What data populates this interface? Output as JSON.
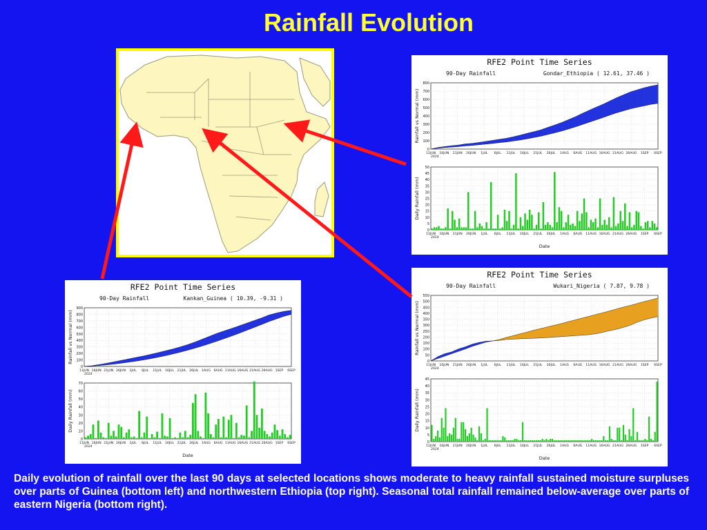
{
  "title": "Rainfall Evolution",
  "caption": "Daily evolution of rainfall over the last 90 days at selected locations shows moderate to heavy rainfall sustained moisture surpluses over parts of Guinea (bottom left) and northwestern Ethiopia (top right). Seasonal total rainfall remained below-average over parts of eastern Nigeria (bottom right).",
  "colors": {
    "background": "#1414f0",
    "title": "#ffff33",
    "surplus": "#2233dd",
    "deficit": "#e8a020",
    "daily_bar": "#22cc22",
    "arrow": "#ff1a1a",
    "map_land": "#fdf6bf"
  },
  "map": {
    "name": "africa-map"
  },
  "chart_data": [
    {
      "id": "gondar",
      "type": "area",
      "title": "RFE2 Point Time Series",
      "subtitle_left": "90-Day Rainfall",
      "subtitle_right": "Gondar_Ethiopia  ( 12.61, 37.46 )",
      "top_ylabel": "Rainfall vs Normal (mm)",
      "bottom_ylabel": "Daily Rainfall (mm)",
      "xlabel": "Date",
      "x_ticks": [
        "11JUN",
        "16JUN",
        "21JUN",
        "26JUN",
        "1JUL",
        "6JUL",
        "11JUL",
        "16JUL",
        "21JUL",
        "26JUL",
        "1AUG",
        "6AUG",
        "11AUG",
        "16AUG",
        "21AUG",
        "26AUG",
        "1SEP",
        "6SEP"
      ],
      "x_year": "2024",
      "top_ylim": [
        0,
        800
      ],
      "top_yticks": [
        "0",
        "100",
        "200",
        "300",
        "400",
        "500",
        "600",
        "700",
        "800"
      ],
      "bottom_ylim": [
        0,
        50
      ],
      "bottom_yticks": [
        "0",
        "5",
        "10",
        "15",
        "20",
        "25",
        "30",
        "35",
        "40",
        "45",
        "50"
      ],
      "series": [
        {
          "name": "actual",
          "values": [
            0,
            18,
            30,
            40,
            48,
            62,
            68,
            80,
            92,
            105,
            118,
            130,
            148,
            168,
            190,
            210,
            232,
            262,
            290,
            320,
            355,
            390,
            430,
            468,
            505,
            540,
            580,
            620,
            655,
            690,
            715,
            740,
            760,
            775
          ]
        },
        {
          "name": "normal",
          "values": [
            0,
            10,
            18,
            24,
            30,
            38,
            44,
            52,
            60,
            68,
            78,
            86,
            98,
            110,
            124,
            140,
            156,
            176,
            196,
            218,
            242,
            268,
            296,
            324,
            352,
            380,
            410,
            438,
            462,
            486,
            505,
            522,
            540,
            552
          ]
        }
      ],
      "daily": [
        1,
        2,
        2,
        3,
        1,
        1,
        2,
        17,
        1,
        15,
        8,
        2,
        9,
        2,
        2,
        2,
        30,
        1,
        1,
        15,
        2,
        5,
        3,
        1,
        6,
        1,
        38,
        1,
        1,
        12,
        1,
        2,
        16,
        7,
        15,
        1,
        4,
        45,
        1,
        10,
        3,
        13,
        8,
        16,
        12,
        1,
        4,
        14,
        1,
        22,
        4,
        6,
        4,
        2,
        46,
        6,
        18,
        15,
        2,
        6,
        12,
        4,
        5,
        3,
        15,
        7,
        13,
        25,
        14,
        2,
        8,
        6,
        9,
        2,
        25,
        4,
        8,
        4,
        10,
        2,
        26,
        3,
        5,
        15,
        7,
        21,
        3,
        14,
        2,
        4,
        15,
        14,
        3,
        1,
        6,
        7,
        2,
        7,
        5,
        2
      ]
    },
    {
      "id": "kankan",
      "type": "area",
      "title": "RFE2 Point Time Series",
      "subtitle_left": "90-Day Rainfall",
      "subtitle_right": "Kankan_Guinea  ( 10.39, -9.31 )",
      "top_ylabel": "Rainfall vs Normal (mm)",
      "bottom_ylabel": "Daily Rainfall (mm)",
      "xlabel": "Date",
      "x_ticks": [
        "11JUN",
        "16JUN",
        "21JUN",
        "26JUN",
        "1JUL",
        "6JUL",
        "11JUL",
        "16JUL",
        "21JUL",
        "26JUL",
        "1AUG",
        "6AUG",
        "11AUG",
        "16AUG",
        "21AUG",
        "26AUG",
        "1SEP",
        "6SEP"
      ],
      "x_year": "2024",
      "top_ylim": [
        0,
        900
      ],
      "top_yticks": [
        "0",
        "100",
        "200",
        "300",
        "400",
        "500",
        "600",
        "700",
        "800",
        "900"
      ],
      "bottom_ylim": [
        0,
        70
      ],
      "bottom_yticks": [
        "0",
        "10",
        "20",
        "30",
        "40",
        "50",
        "60",
        "70"
      ],
      "series": [
        {
          "name": "actual",
          "values": [
            0,
            10,
            28,
            48,
            70,
            92,
            115,
            138,
            160,
            185,
            212,
            240,
            268,
            300,
            335,
            375,
            420,
            465,
            510,
            548,
            585,
            625,
            665,
            705,
            745,
            790,
            820,
            845,
            860
          ]
        },
        {
          "name": "normal",
          "values": [
            0,
            6,
            14,
            24,
            36,
            50,
            66,
            82,
            100,
            120,
            142,
            166,
            192,
            220,
            250,
            282,
            316,
            352,
            390,
            430,
            470,
            512,
            556,
            600,
            644,
            690,
            730,
            770,
            800
          ]
        }
      ],
      "daily": [
        2,
        4,
        6,
        18,
        1,
        23,
        8,
        2,
        1,
        20,
        4,
        10,
        3,
        18,
        15,
        2,
        8,
        12,
        2,
        3,
        1,
        35,
        2,
        8,
        28,
        1,
        6,
        2,
        9,
        1,
        32,
        4,
        3,
        26,
        1,
        2,
        1,
        8,
        2,
        10,
        2,
        5,
        45,
        56,
        10,
        3,
        1,
        58,
        32,
        6,
        2,
        18,
        25,
        2,
        28,
        2,
        24,
        30,
        1,
        20,
        2,
        5,
        4,
        42,
        2,
        10,
        72,
        30,
        14,
        38,
        10,
        6,
        3,
        8,
        18,
        11,
        4,
        12,
        6,
        2,
        5
      ]
    },
    {
      "id": "wukari",
      "type": "area",
      "title": "RFE2 Point Time Series",
      "subtitle_left": "90-Day Rainfall",
      "subtitle_right": "Wukari_Nigeria  ( 7.87, 9.78 )",
      "top_ylabel": "Rainfall vs Normal (mm)",
      "bottom_ylabel": "Daily Rainfall (mm)",
      "xlabel": "Date",
      "x_ticks": [
        "11JUN",
        "16JUN",
        "21JUN",
        "26JUN",
        "1JUL",
        "6JUL",
        "11JUL",
        "16JUL",
        "21JUL",
        "26JUL",
        "1AUG",
        "6AUG",
        "11AUG",
        "16AUG",
        "21AUG",
        "26AUG",
        "1SEP",
        "6SEP"
      ],
      "x_year": "2024",
      "top_ylim": [
        0,
        550
      ],
      "top_yticks": [
        "0",
        "50",
        "100",
        "150",
        "200",
        "250",
        "300",
        "350",
        "400",
        "450",
        "500",
        "550"
      ],
      "bottom_ylim": [
        0,
        45
      ],
      "bottom_yticks": [
        "0",
        "5",
        "10",
        "15",
        "20",
        "25",
        "30",
        "35",
        "40",
        "45"
      ],
      "series": [
        {
          "name": "actual",
          "values": [
            0,
            35,
            60,
            75,
            100,
            118,
            140,
            155,
            165,
            168,
            172,
            180,
            183,
            186,
            188,
            190,
            193,
            196,
            200,
            204,
            208,
            212,
            216,
            220,
            228,
            240,
            254,
            266,
            282,
            300,
            325,
            345,
            360,
            372
          ]
        },
        {
          "name": "normal",
          "values": [
            0,
            20,
            40,
            60,
            80,
            100,
            122,
            140,
            158,
            168,
            180,
            198,
            212,
            228,
            242,
            258,
            272,
            286,
            300,
            314,
            330,
            344,
            360,
            374,
            390,
            404,
            420,
            436,
            452,
            466,
            482,
            498,
            512,
            528
          ]
        }
      ],
      "daily": [
        12,
        2,
        4,
        8,
        3,
        17,
        10,
        24,
        4,
        6,
        5,
        10,
        17,
        2,
        2,
        14,
        14,
        9,
        4,
        6,
        10,
        5,
        3,
        1,
        11,
        6,
        1,
        2,
        24,
        1,
        1,
        1,
        1,
        1,
        1,
        1,
        4,
        3,
        1,
        1,
        1,
        1,
        2,
        2,
        1,
        1,
        14,
        1,
        1,
        1,
        1,
        1,
        1,
        1,
        1,
        1,
        2,
        1,
        2,
        1,
        2,
        2,
        1,
        1,
        1,
        1,
        1,
        1,
        1,
        1,
        1,
        1,
        1,
        1,
        1,
        1,
        1,
        1,
        1,
        1,
        1,
        2,
        1,
        1,
        1,
        1,
        1,
        4,
        1,
        1,
        11,
        2,
        1,
        1,
        10,
        10,
        1,
        12,
        5,
        1,
        9,
        4,
        24,
        1,
        7,
        1,
        1,
        1,
        2,
        1,
        18,
        2,
        1,
        7,
        43
      ]
    }
  ]
}
